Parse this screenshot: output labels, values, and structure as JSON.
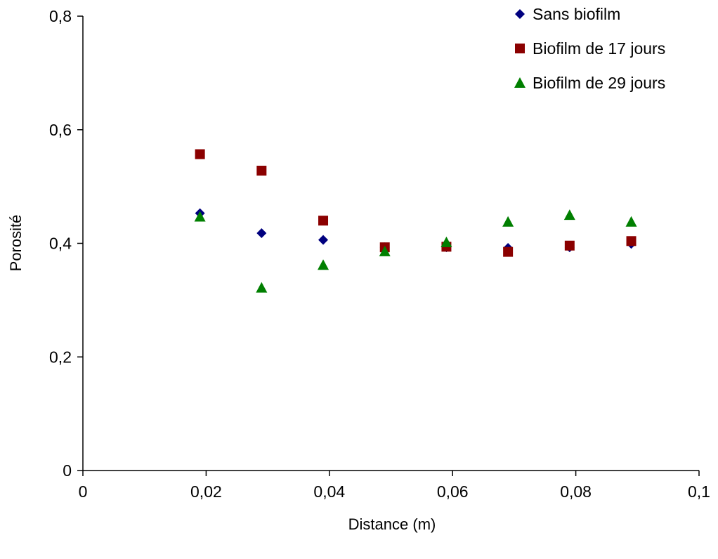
{
  "chart_data": {
    "type": "scatter",
    "title": "",
    "xlabel": "Distance (m)",
    "ylabel": "Porosité",
    "xlim": [
      0,
      0.1
    ],
    "ylim": [
      0,
      0.8
    ],
    "x_ticks": [
      0,
      0.02,
      0.04,
      0.06,
      0.08,
      0.1
    ],
    "x_tick_labels": [
      "0",
      "0,02",
      "0,04",
      "0,06",
      "0,08",
      "0,1"
    ],
    "y_ticks": [
      0,
      0.2,
      0.4,
      0.6,
      0.8
    ],
    "y_tick_labels": [
      "0",
      "0,2",
      "0,4",
      "0,6",
      "0,8"
    ],
    "grid": false,
    "legend_position": "top-right",
    "series": [
      {
        "name": "Sans biofilm",
        "marker": "diamond",
        "color": "#00007F",
        "x": [
          0.019,
          0.029,
          0.039,
          0.049,
          0.059,
          0.069,
          0.079,
          0.089
        ],
        "y": [
          0.453,
          0.418,
          0.406,
          0.393,
          0.393,
          0.392,
          0.393,
          0.399
        ]
      },
      {
        "name": "Biofilm de 17 jours",
        "marker": "square",
        "color": "#8B0000",
        "x": [
          0.019,
          0.029,
          0.039,
          0.049,
          0.059,
          0.069,
          0.079,
          0.089
        ],
        "y": [
          0.557,
          0.528,
          0.44,
          0.393,
          0.394,
          0.385,
          0.396,
          0.404
        ]
      },
      {
        "name": "Biofilm de 29 jours",
        "marker": "triangle",
        "color": "#007F00",
        "x": [
          0.019,
          0.029,
          0.039,
          0.049,
          0.059,
          0.069,
          0.079,
          0.089
        ],
        "y": [
          0.447,
          0.322,
          0.362,
          0.386,
          0.402,
          0.438,
          0.45,
          0.438
        ]
      }
    ]
  }
}
